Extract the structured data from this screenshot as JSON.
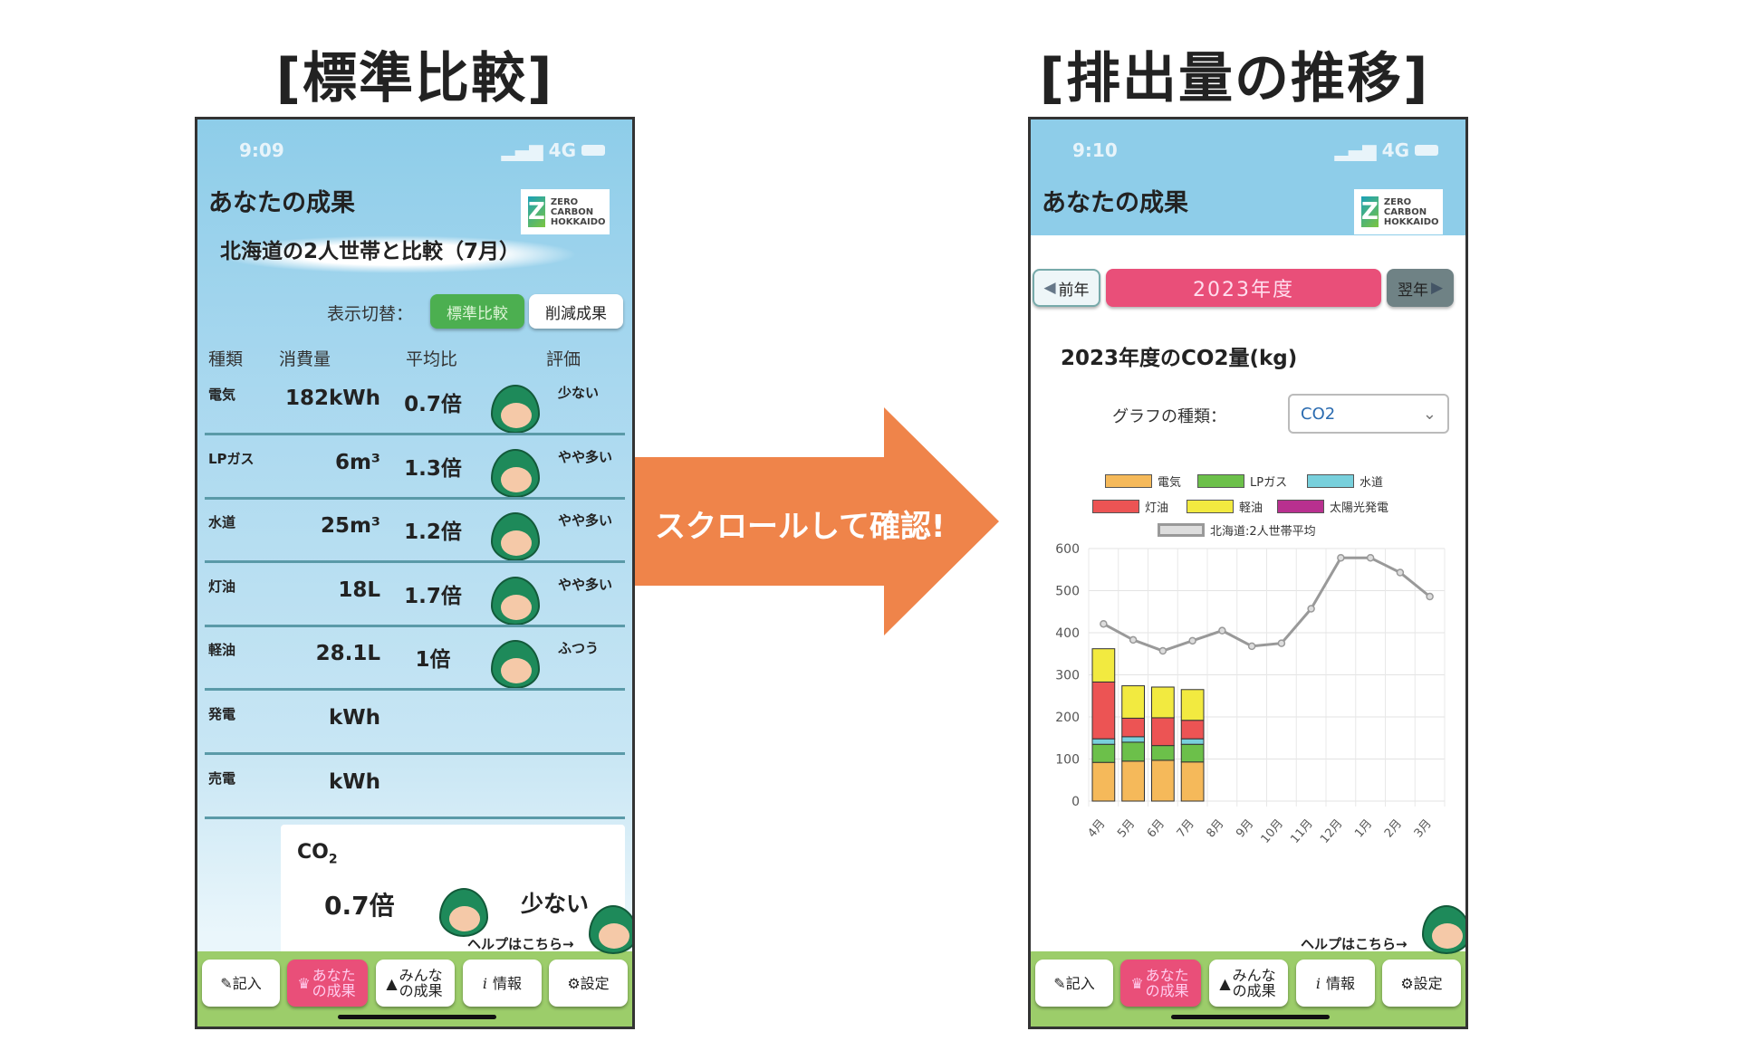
{
  "headings": {
    "left": "[標準比較]",
    "right": "[排出量の推移]"
  },
  "arrow": {
    "text": "スクロールして確認!",
    "color": "#ef844a"
  },
  "left_phone": {
    "time": "9:09",
    "network": "4G",
    "title": "あなたの成果",
    "logo": {
      "line1": "ZERO",
      "line2": "CARBON",
      "line3": "HOKKAIDO"
    },
    "subtitle": "北海道の2人世帯と比較（7月）",
    "toggle": {
      "label": "表示切替：",
      "options": [
        "標準比較",
        "削減成果"
      ],
      "selected": "標準比較"
    },
    "columns": [
      "種類",
      "消費量",
      "平均比",
      "評価"
    ],
    "rows": [
      {
        "type": "電気",
        "usage": "182kWh",
        "ratio": "0.7倍",
        "rating": "少ない",
        "face": "happy"
      },
      {
        "type": "LPガス",
        "usage": "6m³",
        "ratio": "1.3倍",
        "rating": "やや多い",
        "face": "angry"
      },
      {
        "type": "水道",
        "usage": "25m³",
        "ratio": "1.2倍",
        "rating": "やや多い",
        "face": "angry"
      },
      {
        "type": "灯油",
        "usage": "18L",
        "ratio": "1.7倍",
        "rating": "やや多い",
        "face": "angry"
      },
      {
        "type": "軽油",
        "usage": "28.1L",
        "ratio": "1倍",
        "rating": "ふつう",
        "face": "neutral"
      },
      {
        "type": "発電",
        "usage": "kWh",
        "ratio": "",
        "rating": ""
      },
      {
        "type": "売電",
        "usage": "kWh",
        "ratio": "",
        "rating": ""
      }
    ],
    "co2": {
      "label": "CO",
      "sub": "2",
      "ratio": "0.7倍",
      "rating": "少ない"
    },
    "help": "ヘルプはこちら→"
  },
  "right_phone": {
    "time": "9:10",
    "network": "4G",
    "title": "あなたの成果",
    "logo": {
      "line1": "ZERO",
      "line2": "CARBON",
      "line3": "HOKKAIDO"
    },
    "prev_year": "前年",
    "year": "2023年度",
    "next_year": "翌年",
    "chart_title": "2023年度のCO2量(kg)",
    "graph_type_label": "グラフの種類：",
    "graph_type_value": "CO2",
    "help": "ヘルプはこちら→"
  },
  "nav": {
    "items": [
      "記入",
      "あなたの成果",
      "みんなの成果",
      "情報",
      "設定"
    ],
    "active": "あなたの成果",
    "icons": [
      "pencil-icon",
      "crown-icon",
      "trees-icon",
      "info-icon",
      "gear-icon"
    ]
  },
  "colors": {
    "accent": "#e94f79",
    "toggle_active": "#4caf50",
    "nav_bg": "#9ccd6a",
    "header_bg": "#8ecde9"
  },
  "chart_data": {
    "type": "bar",
    "categories": [
      "4月",
      "5月",
      "6月",
      "7月",
      "8月",
      "9月",
      "10月",
      "11月",
      "12月",
      "1月",
      "2月",
      "3月"
    ],
    "ylim": [
      0,
      600
    ],
    "yticks": [
      0,
      100,
      200,
      300,
      400,
      500,
      600
    ],
    "grid": true,
    "legend_position": "top",
    "stacked": true,
    "series": [
      {
        "name": "電気",
        "color": "#f5b95a",
        "values": [
          92,
          95,
          97,
          93,
          null,
          null,
          null,
          null,
          null,
          null,
          null,
          null
        ]
      },
      {
        "name": "LPガス",
        "color": "#6cc04a",
        "values": [
          43,
          45,
          35,
          42,
          null,
          null,
          null,
          null,
          null,
          null,
          null,
          null
        ]
      },
      {
        "name": "水道",
        "color": "#78d0dc",
        "values": [
          13,
          13,
          0,
          13,
          null,
          null,
          null,
          null,
          null,
          null,
          null,
          null
        ]
      },
      {
        "name": "灯油",
        "color": "#ec5454",
        "values": [
          135,
          44,
          66,
          44,
          null,
          null,
          null,
          null,
          null,
          null,
          null,
          null
        ]
      },
      {
        "name": "軽油",
        "color": "#f2ea40",
        "values": [
          79,
          77,
          73,
          73,
          null,
          null,
          null,
          null,
          null,
          null,
          null,
          null
        ]
      },
      {
        "name": "太陽光発電",
        "color": "#b8308f",
        "values": [
          null,
          null,
          null,
          null,
          null,
          null,
          null,
          null,
          null,
          null,
          null,
          null
        ]
      }
    ],
    "line": {
      "name": "北海道:2人世帯平均",
      "color": "#999999",
      "values": [
        421,
        383,
        357,
        381,
        405,
        368,
        375,
        457,
        578,
        578,
        543,
        486
      ]
    }
  }
}
